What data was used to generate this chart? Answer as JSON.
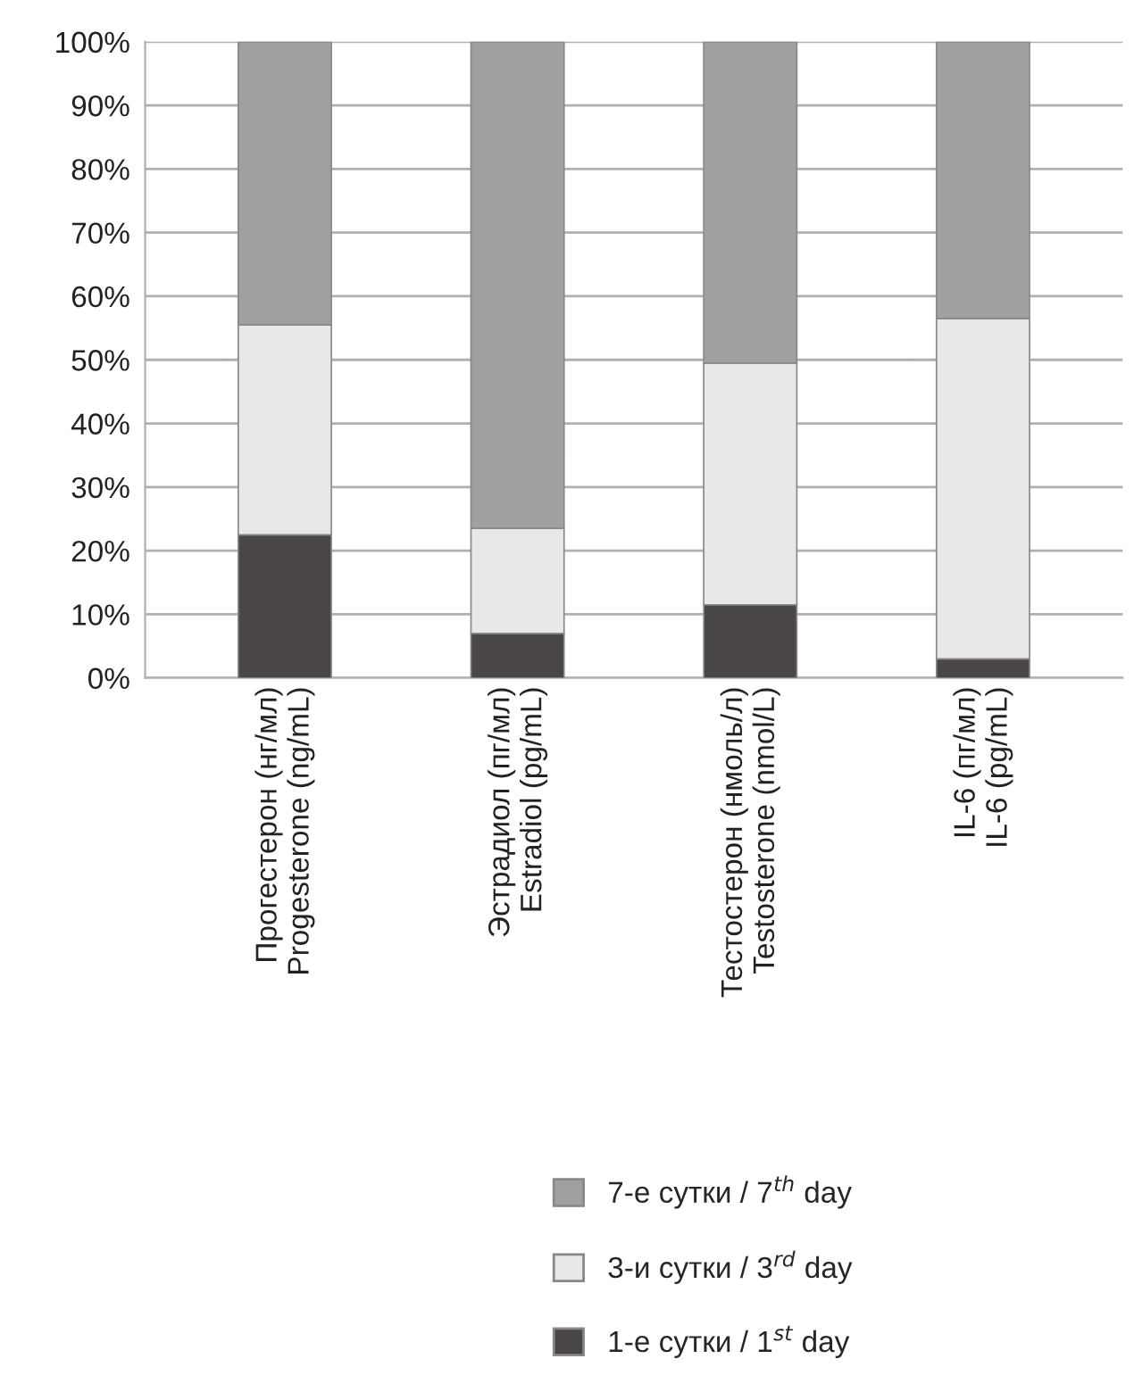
{
  "chart_data": {
    "type": "bar",
    "stacked": true,
    "categories": [
      "Прогестерон (нг/мл)\nProgesterone (ng/mL)",
      "Эстрадиол (пг/мл)\nEstradiol (pg/mL)",
      "Тестостерон (нмоль/л)\nTestosterone (nmol/L)",
      "IL-6 (пг/мл)\nIL-6 (pg/mL)"
    ],
    "series": [
      {
        "name": "1-е сутки / 1$^{st}$ day",
        "color": "#4a4648",
        "values": [
          22.5,
          7,
          11.5,
          3
        ]
      },
      {
        "name": "3-и сутки / 3$^{rd}$ day",
        "color": "#e8e8e8",
        "values": [
          33,
          16.5,
          38,
          53.5
        ]
      },
      {
        "name": "7-е сутки / 7$^{th}$ day",
        "color": "#a0a0a2",
        "values": [
          44.5,
          76.5,
          50.5,
          43.5
        ]
      }
    ],
    "ylim": [
      0,
      100
    ],
    "yticks": [
      {
        "value": 0,
        "label": "0%"
      },
      {
        "value": 10,
        "label": "10%"
      },
      {
        "value": 20,
        "label": "20%"
      },
      {
        "value": 30,
        "label": "30%"
      },
      {
        "value": 40,
        "label": "40%"
      },
      {
        "value": 50,
        "label": "50%"
      },
      {
        "value": 60,
        "label": "60%"
      },
      {
        "value": 70,
        "label": "70%"
      },
      {
        "value": 80,
        "label": "80%"
      },
      {
        "value": 90,
        "label": "90%"
      },
      {
        "value": 100,
        "label": "100%"
      }
    ],
    "grid": "y",
    "legend": "bottom"
  }
}
